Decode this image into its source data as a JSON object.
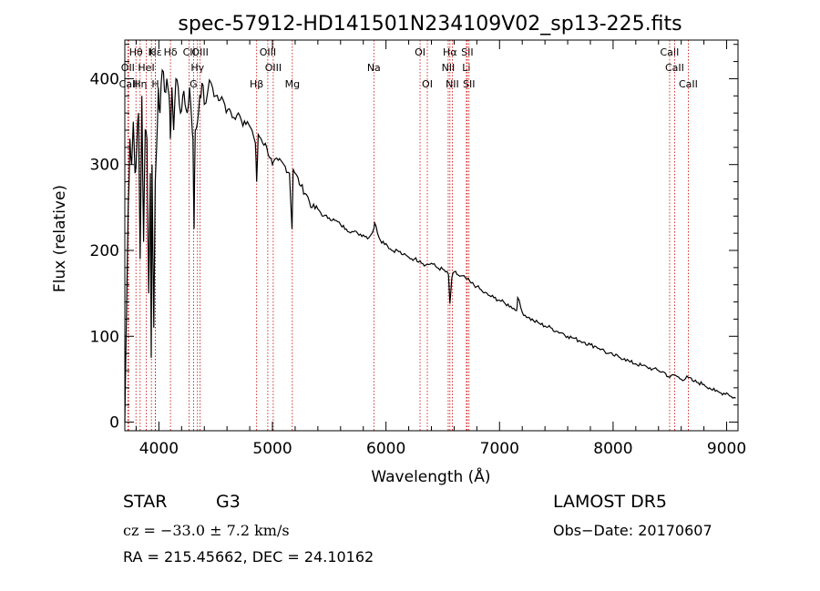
{
  "chart_data": {
    "type": "line",
    "title": "spec-57912-HD141501N234109V02_sp13-225.fits",
    "xlabel": "Wavelength (Å)",
    "ylabel": "Flux (relative)",
    "xlim": [
      3700,
      9100
    ],
    "ylim": [
      -10,
      445
    ],
    "xticks": [
      4000,
      5000,
      6000,
      7000,
      8000,
      9000
    ],
    "yticks": [
      0,
      100,
      200,
      300,
      400
    ],
    "grid": false,
    "line_color": "#000000",
    "marker_color": "#cc0000",
    "series": [
      {
        "x": [
          3700,
          3715,
          3730,
          3745,
          3760,
          3775,
          3790,
          3805,
          3820,
          3835,
          3850,
          3865,
          3880,
          3895,
          3910,
          3925,
          3933,
          3940,
          3955,
          3968,
          3980,
          3995,
          4010,
          4030,
          4050,
          4070,
          4090,
          4101,
          4115,
          4130,
          4150,
          4170,
          4190,
          4210,
          4230,
          4250,
          4270,
          4290,
          4300,
          4310,
          4320,
          4340,
          4360,
          4380,
          4400,
          4430,
          4460,
          4500,
          4540,
          4580,
          4620,
          4660,
          4700,
          4740,
          4780,
          4820,
          4850,
          4861,
          4875,
          4900,
          4950,
          5000,
          5050,
          5100,
          5150,
          5172,
          5183,
          5200,
          5250,
          5300,
          5350,
          5400,
          5450,
          5500,
          5550,
          5600,
          5650,
          5700,
          5750,
          5800,
          5850,
          5893,
          5900,
          5950,
          6000,
          6050,
          6100,
          6150,
          6200,
          6250,
          6300,
          6350,
          6400,
          6450,
          6500,
          6550,
          6563,
          6580,
          6600,
          6650,
          6700,
          6750,
          6800,
          6850,
          6900,
          6950,
          7000,
          7050,
          7100,
          7150,
          7160,
          7200,
          7250,
          7300,
          7350,
          7400,
          7450,
          7500,
          7550,
          7600,
          7650,
          7700,
          7750,
          7800,
          7850,
          7900,
          7950,
          8000,
          8050,
          8100,
          8150,
          8200,
          8250,
          8300,
          8350,
          8400,
          8450,
          8498,
          8542,
          8600,
          8662,
          8700,
          8750,
          8800,
          8850,
          8900,
          8950,
          9000,
          9040,
          9080
        ],
        "y": [
          0,
          130,
          250,
          330,
          300,
          350,
          290,
          320,
          360,
          190,
          380,
          210,
          340,
          330,
          150,
          290,
          75,
          300,
          110,
          280,
          320,
          390,
          360,
          410,
          385,
          400,
          380,
          330,
          390,
          340,
          400,
          390,
          360,
          380,
          370,
          360,
          390,
          350,
          330,
          225,
          340,
          350,
          380,
          395,
          370,
          385,
          395,
          380,
          375,
          370,
          365,
          355,
          360,
          345,
          350,
          340,
          325,
          280,
          335,
          330,
          320,
          300,
          305,
          300,
          290,
          225,
          295,
          290,
          275,
          265,
          250,
          248,
          240,
          238,
          235,
          230,
          225,
          222,
          220,
          218,
          215,
          225,
          232,
          212,
          208,
          200,
          200,
          195,
          192,
          190,
          188,
          183,
          185,
          180,
          178,
          172,
          138,
          168,
          175,
          170,
          168,
          162,
          158,
          152,
          148,
          145,
          142,
          138,
          135,
          130,
          145,
          128,
          122,
          118,
          115,
          112,
          110,
          106,
          104,
          100,
          98,
          95,
          93,
          90,
          88,
          85,
          80,
          78,
          76,
          74,
          70,
          68,
          66,
          64,
          62,
          60,
          58,
          52,
          55,
          50,
          52,
          48,
          46,
          44,
          40,
          36,
          34,
          34,
          30,
          28
        ]
      }
    ],
    "line_markers": [
      {
        "label": "Hθ",
        "wave": 3798,
        "row": 1
      },
      {
        "label": "OII",
        "wave": 3727,
        "row": 2
      },
      {
        "label": "CaII",
        "wave": 3733,
        "row": 3
      },
      {
        "label": "Hη",
        "wave": 3835,
        "row": 3
      },
      {
        "label": "HeI",
        "wave": 3889,
        "row": 2
      },
      {
        "label": "K",
        "wave": 3934,
        "row": 1
      },
      {
        "label": "H",
        "wave": 3969,
        "row": 3
      },
      {
        "label": "Hδ",
        "wave": 4102,
        "row": 1
      },
      {
        "label": "Hε",
        "wave": 3970,
        "row": 1
      },
      {
        "label": "CII",
        "wave": 4267,
        "row": 1
      },
      {
        "label": "G",
        "wave": 4305,
        "row": 3
      },
      {
        "label": "Hγ",
        "wave": 4340,
        "row": 2
      },
      {
        "label": "OIII",
        "wave": 4363,
        "row": 1
      },
      {
        "label": "Hβ",
        "wave": 4861,
        "row": 3
      },
      {
        "label": "OIII",
        "wave": 4959,
        "row": 1
      },
      {
        "label": "OIII",
        "wave": 5007,
        "row": 2
      },
      {
        "label": "Mg",
        "wave": 5175,
        "row": 3
      },
      {
        "label": "Na",
        "wave": 5893,
        "row": 2
      },
      {
        "label": "OI",
        "wave": 6300,
        "row": 1
      },
      {
        "label": "OI",
        "wave": 6364,
        "row": 3
      },
      {
        "label": "Hα",
        "wave": 6563,
        "row": 1
      },
      {
        "label": "NII",
        "wave": 6548,
        "row": 2
      },
      {
        "label": "NII",
        "wave": 6584,
        "row": 3
      },
      {
        "label": "SII",
        "wave": 6716,
        "row": 1
      },
      {
        "label": "Li",
        "wave": 6708,
        "row": 2
      },
      {
        "label": "SII",
        "wave": 6731,
        "row": 3
      },
      {
        "label": "CaII",
        "wave": 8498,
        "row": 1
      },
      {
        "label": "CaII",
        "wave": 8542,
        "row": 2
      },
      {
        "label": "CaII",
        "wave": 8662,
        "row": 3
      }
    ]
  },
  "info": {
    "object_class": "STAR",
    "subclass": "G3",
    "survey": "LAMOST DR5",
    "cz": "cz = −33.0 ± 7.2 km/s",
    "obs_date": "Obs−Date: 20170607",
    "coords": "RA = 215.45662, DEC =  24.10162"
  }
}
